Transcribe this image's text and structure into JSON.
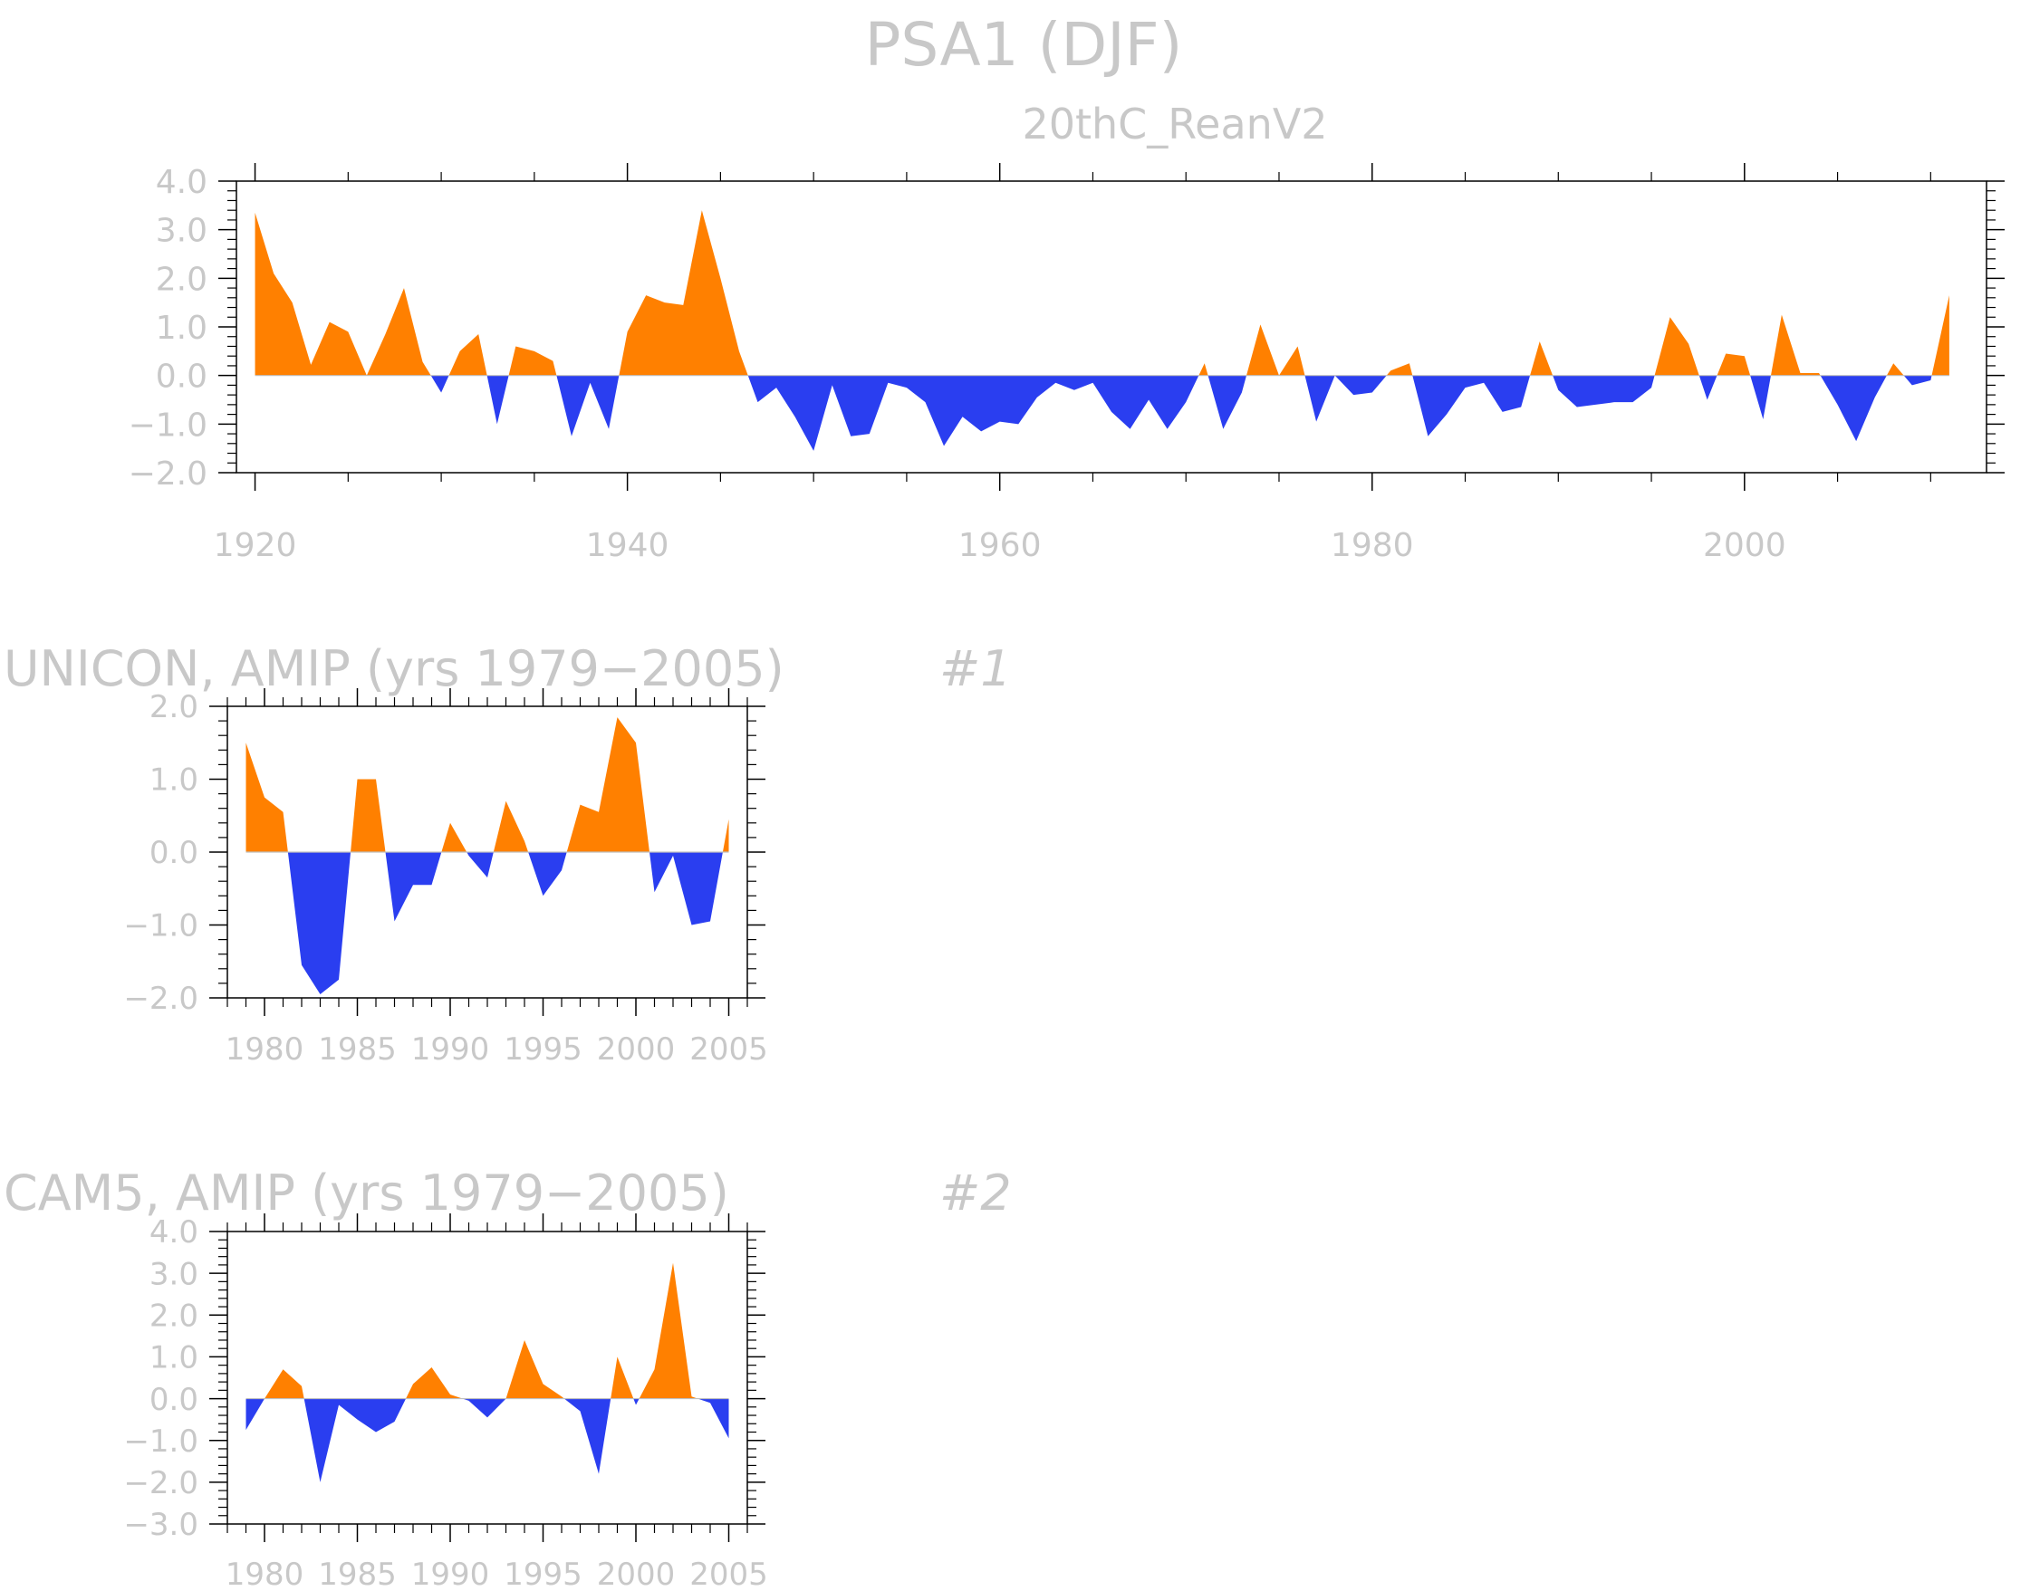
{
  "title": "PSA1 (DJF)",
  "colors": {
    "positive": "#ff8000",
    "negative": "#2a3ef0",
    "text": "#c8c8c8",
    "axis": "#000000"
  },
  "chart_data": [
    {
      "type": "area",
      "subtitle": "20thC_ReanV2",
      "heading": "",
      "number_label": "",
      "xlim": [
        1919,
        2013
      ],
      "ylim": [
        -2.0,
        4.0
      ],
      "xticks": [
        1920,
        1940,
        1960,
        1980,
        2000
      ],
      "xtick_labels": [
        "1920",
        "1940",
        "1960",
        "1980",
        "2000"
      ],
      "yticks": [
        -2,
        -1,
        0,
        1,
        2,
        3,
        4
      ],
      "ytick_labels": [
        "−2.0",
        "−1.0",
        "0.0",
        "1.0",
        "2.0",
        "3.0",
        "4.0"
      ],
      "x_start": 1920,
      "values": [
        3.35,
        2.1,
        1.5,
        0.22,
        1.1,
        0.9,
        0.0,
        0.85,
        1.8,
        0.28,
        -0.35,
        0.5,
        0.85,
        -1.0,
        0.6,
        0.5,
        0.3,
        -1.25,
        -0.15,
        -1.1,
        0.9,
        1.65,
        1.5,
        1.45,
        3.4,
        2.0,
        0.5,
        -0.55,
        -0.25,
        -0.85,
        -1.55,
        -0.2,
        -1.25,
        -1.2,
        -0.15,
        -0.25,
        -0.55,
        -1.45,
        -0.85,
        -1.15,
        -0.95,
        -1.0,
        -0.45,
        -0.15,
        -0.3,
        -0.15,
        -0.75,
        -1.1,
        -0.5,
        -1.1,
        -0.55,
        0.25,
        -1.1,
        -0.35,
        1.05,
        0.0,
        0.6,
        -0.95,
        0.0,
        -0.4,
        -0.35,
        0.1,
        0.25,
        -1.25,
        -0.8,
        -0.25,
        -0.15,
        -0.75,
        -0.65,
        0.7,
        -0.3,
        -0.65,
        -0.6,
        -0.55,
        -0.55,
        -0.25,
        1.2,
        0.65,
        -0.5,
        0.45,
        0.4,
        -0.9,
        1.25,
        0.05,
        0.05,
        -0.6,
        -1.35,
        -0.45,
        0.25,
        -0.2,
        -0.1,
        1.65
      ]
    },
    {
      "type": "area",
      "subtitle": "",
      "heading": "UNICON, AMIP (yrs 1979−2005)",
      "number_label": "#1",
      "xlim": [
        1978,
        2006
      ],
      "ylim": [
        -2.0,
        2.0
      ],
      "xticks": [
        1980,
        1985,
        1990,
        1995,
        2000,
        2005
      ],
      "xtick_labels": [
        "1980",
        "1985",
        "1990",
        "1995",
        "2000",
        "2005"
      ],
      "yticks": [
        -2,
        -1,
        0,
        1,
        2
      ],
      "ytick_labels": [
        "−2.0",
        "−1.0",
        "0.0",
        "1.0",
        "2.0"
      ],
      "x_start": 1979,
      "values": [
        1.5,
        0.75,
        0.55,
        -1.55,
        -1.95,
        -1.75,
        1.0,
        1.0,
        -0.95,
        -0.45,
        -0.45,
        0.4,
        -0.05,
        -0.35,
        0.7,
        0.15,
        -0.6,
        -0.25,
        0.65,
        0.55,
        1.85,
        1.5,
        -0.55,
        -0.05,
        -1.0,
        -0.95,
        0.45
      ]
    },
    {
      "type": "area",
      "subtitle": "",
      "heading": "CAM5, AMIP (yrs 1979−2005)",
      "number_label": "#2",
      "xlim": [
        1978,
        2006
      ],
      "ylim": [
        -3.0,
        4.0
      ],
      "xticks": [
        1980,
        1985,
        1990,
        1995,
        2000,
        2005
      ],
      "xtick_labels": [
        "1980",
        "1985",
        "1990",
        "1995",
        "2000",
        "2005"
      ],
      "yticks": [
        -3,
        -2,
        -1,
        0,
        1,
        2,
        3,
        4
      ],
      "ytick_labels": [
        "−3.0",
        "−2.0",
        "−1.0",
        "0.0",
        "1.0",
        "2.0",
        "3.0",
        "4.0"
      ],
      "x_start": 1979,
      "values": [
        -0.75,
        0.0,
        0.7,
        0.3,
        -2.0,
        -0.15,
        -0.5,
        -0.8,
        -0.55,
        0.35,
        0.75,
        0.1,
        -0.05,
        -0.45,
        0.0,
        1.4,
        0.35,
        0.05,
        -0.3,
        -1.8,
        1.0,
        -0.15,
        0.7,
        3.25,
        0.05,
        -0.1,
        -0.95
      ]
    }
  ]
}
